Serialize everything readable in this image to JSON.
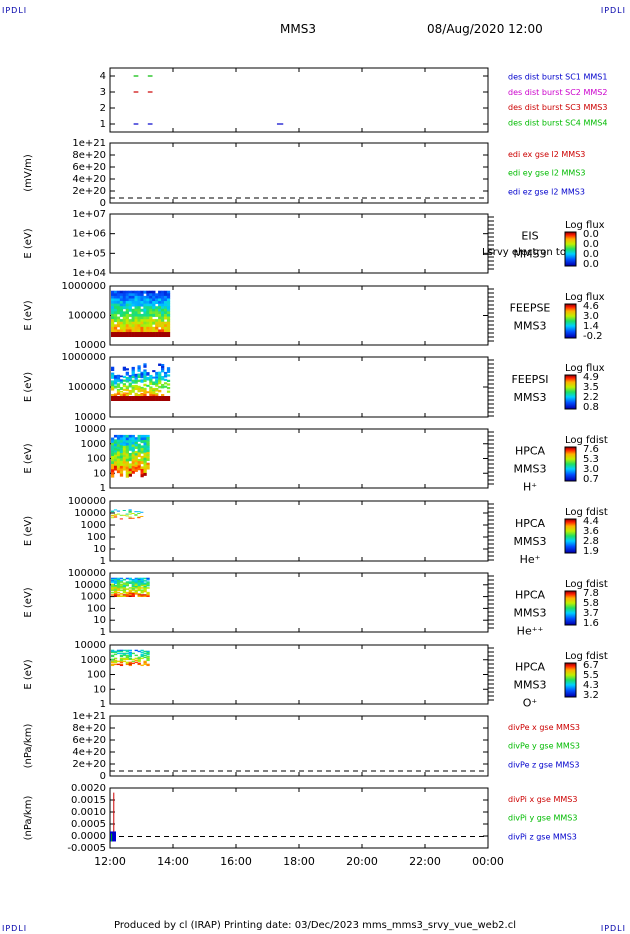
{
  "header": {
    "corner_label": "IPDLI",
    "spacecraft": "MMS3",
    "datetime": "08/Aug/2020 12:00"
  },
  "footer": {
    "text": "Produced by cl (IRAP)   Printing date: 03/Dec/2023   mms_mms3_srvy_vue_web2.cl"
  },
  "colors": {
    "blue": "#0000cc",
    "magenta": "#cc00cc",
    "red": "#cc0000",
    "green": "#00bb00"
  },
  "chart_data": [
    {
      "id": "burst",
      "type": "scatter",
      "ylabel": "",
      "yticks": [
        "4",
        "3",
        "2",
        "1"
      ],
      "legend": [
        {
          "text": "des dist burst SC1 MMS1",
          "color": "#0000cc"
        },
        {
          "text": "des dist burst SC2 MMS2",
          "color": "#cc00cc"
        },
        {
          "text": "des dist burst SC3 MMS3",
          "color": "#cc0000"
        },
        {
          "text": "des dist burst SC4 MMS4",
          "color": "#00bb00"
        }
      ],
      "segments": [
        {
          "level": 4,
          "t0": 12.75,
          "t1": 12.9,
          "color": "#00bb00"
        },
        {
          "level": 4,
          "t0": 13.2,
          "t1": 13.35,
          "color": "#00bb00"
        },
        {
          "level": 3,
          "t0": 12.75,
          "t1": 12.9,
          "color": "#cc0000"
        },
        {
          "level": 3,
          "t0": 13.2,
          "t1": 13.35,
          "color": "#cc0000"
        },
        {
          "level": 1,
          "t0": 12.75,
          "t1": 12.9,
          "color": "#0000cc"
        },
        {
          "level": 1,
          "t0": 13.2,
          "t1": 13.35,
          "color": "#0000cc"
        },
        {
          "level": 1,
          "t0": 17.3,
          "t1": 17.5,
          "color": "#0000cc"
        }
      ]
    },
    {
      "id": "edi",
      "type": "line",
      "ylabel": "(mV/m)",
      "yticks": [
        "1e+21",
        "8e+20",
        "6e+20",
        "4e+20",
        "2e+20",
        "0"
      ],
      "legend": [
        {
          "text": "edi ex gse l2 MMS3",
          "color": "#cc0000"
        },
        {
          "text": "edi ey gse l2 MMS3",
          "color": "#00bb00"
        },
        {
          "text": "edi ez gse l2 MMS3",
          "color": "#0000cc"
        }
      ]
    },
    {
      "id": "eis",
      "type": "heatmap",
      "ylabel": "E (eV)",
      "yticks": [
        "1e+07",
        "1e+06",
        "1e+05",
        "1e+04"
      ],
      "label_lines": [
        "EIS",
        "MMS3"
      ],
      "overlay_text": "Lsrvy electron to",
      "colorbar": {
        "title": "Log flux",
        "ticks": [
          "0.0",
          "0.0",
          "0.0",
          "0.0"
        ]
      },
      "coverage": null
    },
    {
      "id": "feepse",
      "type": "heatmap",
      "ylabel": "E (eV)",
      "yticks": [
        "1000000",
        "100000",
        "10000"
      ],
      "label_lines": [
        "FEEPSE",
        "MMS3"
      ],
      "colorbar": {
        "title": "Log flux",
        "ticks": [
          "4.6",
          "3.0",
          "1.4",
          "-0.2"
        ]
      },
      "coverage": {
        "t0": 12.0,
        "t1": 13.9
      }
    },
    {
      "id": "feepsi",
      "type": "heatmap",
      "ylabel": "E (eV)",
      "yticks": [
        "1000000",
        "100000",
        "10000"
      ],
      "label_lines": [
        "FEEPSI",
        "MMS3"
      ],
      "colorbar": {
        "title": "Log flux",
        "ticks": [
          "4.9",
          "3.5",
          "2.2",
          "0.8"
        ]
      },
      "coverage": {
        "t0": 12.0,
        "t1": 13.9
      }
    },
    {
      "id": "hpca_h",
      "type": "heatmap",
      "ylabel": "E (eV)",
      "yticks": [
        "10000",
        "1000",
        "100",
        "10",
        "1"
      ],
      "label_lines": [
        "HPCA",
        "MMS3",
        "H⁺"
      ],
      "colorbar": {
        "title": "Log fdist",
        "ticks": [
          "7.6",
          "5.3",
          "3.0",
          "0.7"
        ]
      },
      "coverage": {
        "t0": 12.0,
        "t1": 13.25
      }
    },
    {
      "id": "hpca_he",
      "type": "heatmap",
      "ylabel": "E (eV)",
      "yticks": [
        "100000",
        "10000",
        "1000",
        "100",
        "10",
        "1"
      ],
      "label_lines": [
        "HPCA",
        "MMS3",
        "He⁺"
      ],
      "colorbar": {
        "title": "Log fdist",
        "ticks": [
          "4.4",
          "3.6",
          "2.8",
          "1.9"
        ]
      },
      "coverage": {
        "t0": 12.0,
        "t1": 13.05
      }
    },
    {
      "id": "hpca_hepp",
      "type": "heatmap",
      "ylabel": "E (eV)",
      "yticks": [
        "100000",
        "10000",
        "1000",
        "100",
        "10",
        "1"
      ],
      "label_lines": [
        "HPCA",
        "MMS3",
        "He⁺⁺"
      ],
      "colorbar": {
        "title": "Log fdist",
        "ticks": [
          "7.8",
          "5.8",
          "3.7",
          "1.6"
        ]
      },
      "coverage": {
        "t0": 12.0,
        "t1": 13.25
      }
    },
    {
      "id": "hpca_o",
      "type": "heatmap",
      "ylabel": "E (eV)",
      "yticks": [
        "10000",
        "1000",
        "100",
        "10",
        "1"
      ],
      "label_lines": [
        "HPCA",
        "MMS3",
        "O⁺"
      ],
      "colorbar": {
        "title": "Log fdist",
        "ticks": [
          "6.7",
          "5.5",
          "4.3",
          "3.2"
        ]
      },
      "coverage": {
        "t0": 12.0,
        "t1": 13.25
      }
    },
    {
      "id": "divpe",
      "type": "line",
      "ylabel": "(nPa/km)",
      "yticks": [
        "1e+21",
        "8e+20",
        "6e+20",
        "4e+20",
        "2e+20",
        "0"
      ],
      "legend": [
        {
          "text": "divPe x gse MMS3",
          "color": "#cc0000"
        },
        {
          "text": "divPe y gse MMS3",
          "color": "#00bb00"
        },
        {
          "text": "divPe z gse MMS3",
          "color": "#0000cc"
        }
      ]
    },
    {
      "id": "divpi",
      "type": "line",
      "ylabel": "(nPa/km)",
      "yticks": [
        "0.0020",
        "0.0015",
        "0.0010",
        "0.0005",
        "0.0000",
        "-0.0005"
      ],
      "legend": [
        {
          "text": "divPi x gse MMS3",
          "color": "#cc0000"
        },
        {
          "text": "divPi y gse MMS3",
          "color": "#00bb00"
        },
        {
          "text": "divPi z gse MMS3",
          "color": "#0000cc"
        }
      ],
      "spike": {
        "t": 12.12,
        "ymax": 0.0019,
        "ymin": -0.0002
      },
      "ylim": [
        -0.0005,
        0.0021
      ]
    }
  ],
  "time_axis": {
    "ticks": [
      "12:00",
      "14:00",
      "16:00",
      "18:00",
      "20:00",
      "22:00",
      "00:00"
    ],
    "range_hours": [
      12,
      24
    ]
  }
}
